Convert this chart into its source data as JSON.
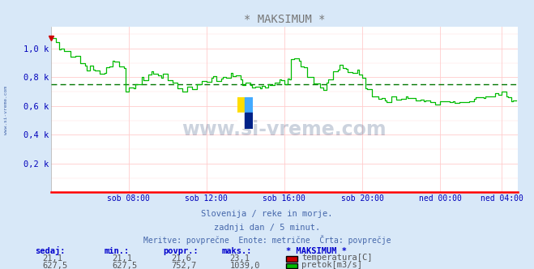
{
  "title": "* MAKSIMUM *",
  "bg_color": "#d8e8f8",
  "plot_bg_color": "#ffffff",
  "grid_color_major": "#ffcccc",
  "line_color": "#00bb00",
  "avg_line_color": "#007700",
  "xaxis_color": "#ff0000",
  "tick_label_color": "#0000bb",
  "title_color": "#777777",
  "watermark_color": "#1a3a6a",
  "subtitle_color": "#4466aa",
  "subtitle1": "Slovenija / reke in morje.",
  "subtitle2": "zadnji dan / 5 minut.",
  "subtitle3": "Meritve: povprečne  Enote: metrične  Črta: povprečje",
  "watermark_text": "www.si-vreme.com",
  "ytick_labels": [
    "0,2 k",
    "0,4 k",
    "0,6 k",
    "0,8 k",
    "1,0 k"
  ],
  "ytick_values": [
    200,
    400,
    600,
    800,
    1000
  ],
  "ylim": [
    0,
    1150
  ],
  "xtick_labels": [
    "sob 08:00",
    "sob 12:00",
    "sob 16:00",
    "sob 20:00",
    "ned 00:00",
    "ned 04:00"
  ],
  "xtick_positions": [
    48,
    96,
    144,
    192,
    240,
    278
  ],
  "avg_value": 752.7,
  "table_headers": [
    "sedaj:",
    "min.:",
    "povpr.:",
    "maks.:"
  ],
  "table_row1": [
    "21,1",
    "21,1",
    "21,6",
    "23,1"
  ],
  "table_row2": [
    "627,5",
    "627,5",
    "752,7",
    "1039,0"
  ],
  "legend_label1": "temperatura[C]",
  "legend_label2": "pretok[m3/s]",
  "legend_color1": "#cc0000",
  "legend_color2": "#00bb00",
  "legend_title": "* MAKSIMUM *",
  "table_header_color": "#0000cc",
  "table_value_color": "#555555",
  "left_label": "www.si-vreme.com",
  "n_points": 288,
  "xlim": [
    0,
    288
  ]
}
